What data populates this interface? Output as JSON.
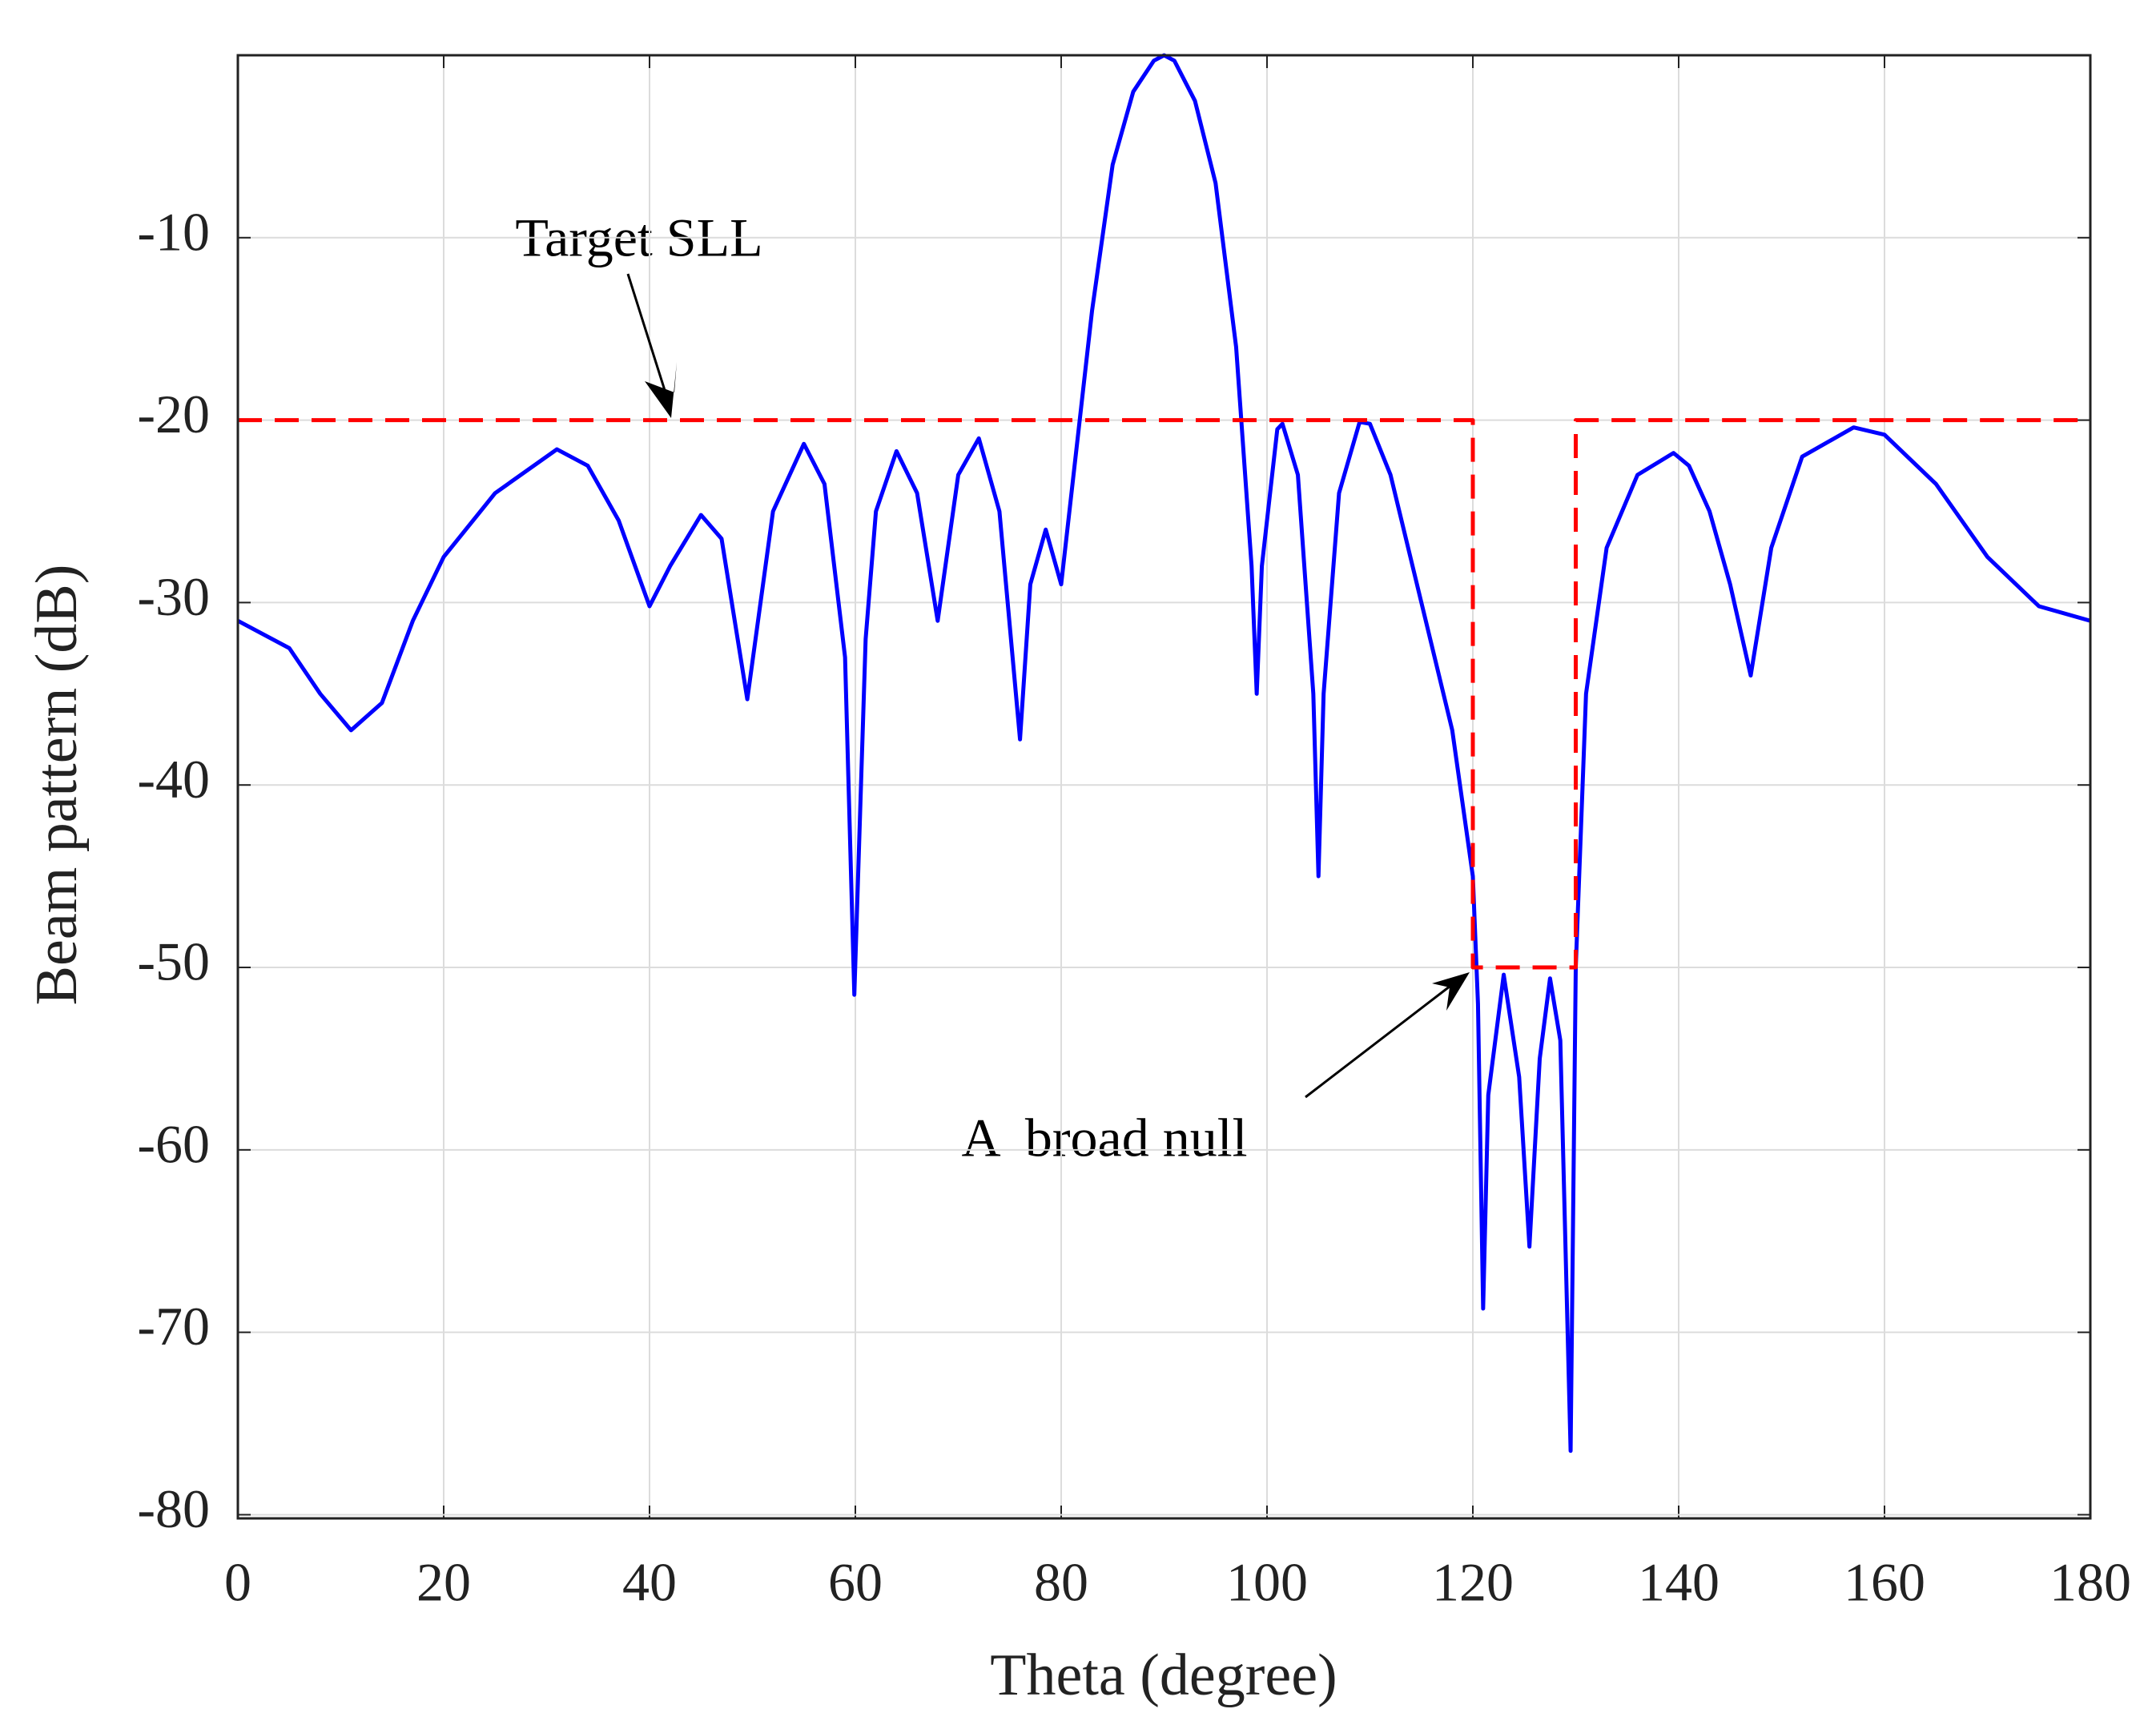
{
  "chart_data": {
    "type": "line",
    "xlabel": "Theta (degree)",
    "ylabel": "Beam pattern (dB)",
    "xlim": [
      0,
      180
    ],
    "ylim": [
      -80.2,
      0
    ],
    "xticks": [
      0,
      20,
      40,
      60,
      80,
      100,
      120,
      140,
      160,
      180
    ],
    "yticks": [
      -80,
      -70,
      -60,
      -50,
      -40,
      -30,
      -20,
      -10
    ],
    "grid": true,
    "series": [
      {
        "color": "#0000ff",
        "x": [
          0,
          5,
          8,
          11,
          14,
          17,
          20,
          25,
          31,
          34,
          37,
          40,
          42,
          45,
          47,
          49.5,
          52,
          55,
          57,
          59,
          59.9,
          61,
          62,
          64,
          66,
          68,
          70,
          72,
          74,
          76,
          77,
          78.5,
          80,
          81,
          83,
          85,
          87,
          89,
          90,
          91,
          93,
          95,
          97,
          98.5,
          99,
          99.5,
          101,
          101.5,
          103,
          104.5,
          105,
          105.5,
          107,
          109,
          110,
          112,
          115,
          118,
          120,
          120.5,
          121,
          121.5,
          123,
          124.5,
          125.5,
          126.5,
          127.5,
          128.5,
          129.5,
          130,
          131,
          133,
          136,
          139.5,
          141,
          143,
          145,
          147,
          149,
          152,
          157,
          160,
          165,
          170,
          175,
          180
        ],
        "values": [
          -31,
          -32.5,
          -35,
          -37,
          -35.5,
          -31,
          -27.5,
          -24,
          -21.6,
          -22.5,
          -25.5,
          -30.2,
          -28,
          -25.2,
          -26.5,
          -35.3,
          -25,
          -21.3,
          -23.5,
          -33,
          -51.5,
          -32,
          -25,
          -21.7,
          -24,
          -31,
          -23,
          -21,
          -25,
          -37.5,
          -29,
          -26,
          -29,
          -24,
          -14,
          -6,
          -2,
          -0.3,
          0,
          -0.3,
          -2.5,
          -7,
          -16,
          -28,
          -35,
          -28,
          -20.5,
          -20.2,
          -23,
          -35,
          -45,
          -35,
          -24,
          -20.1,
          -20.2,
          -23,
          -30,
          -37,
          -45,
          -52,
          -68.7,
          -57,
          -50.4,
          -56,
          -65.3,
          -55,
          -50.6,
          -54,
          -76.5,
          -50,
          -35,
          -27,
          -23,
          -21.8,
          -22.5,
          -25,
          -29,
          -34,
          -27,
          -22,
          -20.4,
          -20.8,
          -23.5,
          -27.5,
          -30.2,
          -31
        ]
      },
      {
        "color": "#ff0000",
        "dashed": true,
        "x": [
          0,
          120,
          120,
          130,
          130,
          180
        ],
        "values": [
          -20,
          -20,
          -50,
          -50,
          -20,
          -20
        ]
      }
    ],
    "annotations": [
      "Target SLL",
      "A  broad null"
    ]
  }
}
